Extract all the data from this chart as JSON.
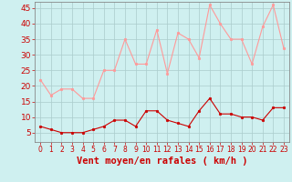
{
  "hours": [
    0,
    1,
    2,
    3,
    4,
    5,
    6,
    7,
    8,
    9,
    10,
    11,
    12,
    13,
    14,
    15,
    16,
    17,
    18,
    19,
    20,
    21,
    22,
    23
  ],
  "wind_avg": [
    7,
    6,
    5,
    5,
    5,
    6,
    7,
    9,
    9,
    7,
    12,
    12,
    9,
    8,
    7,
    12,
    16,
    11,
    11,
    10,
    10,
    9,
    13,
    13
  ],
  "wind_gust": [
    22,
    17,
    19,
    19,
    16,
    16,
    25,
    25,
    35,
    27,
    27,
    38,
    24,
    37,
    35,
    29,
    46,
    40,
    35,
    35,
    27,
    39,
    46,
    32
  ],
  "bg_color": "#cff0f0",
  "grid_color": "#aacccc",
  "avg_color": "#cc0000",
  "gust_color": "#ff9999",
  "xlabel": "Vent moyen/en rafales ( km/h )",
  "xlabel_color": "#cc0000",
  "xlabel_fontsize": 7.5,
  "yticks": [
    5,
    10,
    15,
    20,
    25,
    30,
    35,
    40,
    45
  ],
  "ylim": [
    2,
    47
  ],
  "xlim": [
    -0.5,
    23.5
  ],
  "tick_color": "#cc0000",
  "tick_fontsize": 6.5,
  "xtick_fontsize": 5.5
}
